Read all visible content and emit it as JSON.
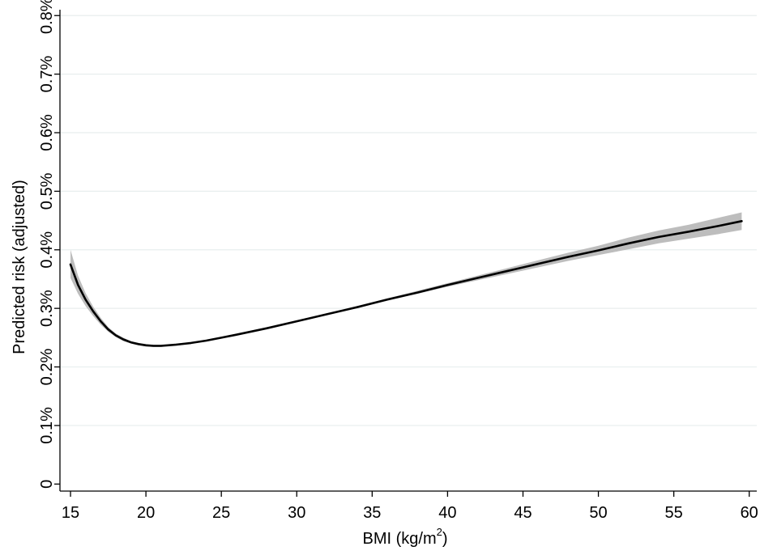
{
  "chart_data": {
    "type": "line",
    "title": "",
    "xlabel": "BMI (kg/m",
    "xlabel_superscript": "2",
    "xlabel_suffix": ")",
    "ylabel": "Predicted risk (adjusted)",
    "xlim": [
      14.3,
      60.5
    ],
    "ylim": [
      -0.012,
      0.81
    ],
    "x_ticks": [
      15,
      20,
      25,
      30,
      35,
      40,
      45,
      50,
      55,
      60
    ],
    "x_tick_labels": [
      "15",
      "20",
      "25",
      "30",
      "35",
      "40",
      "45",
      "50",
      "55",
      "60"
    ],
    "y_ticks": [
      0,
      0.1,
      0.2,
      0.3,
      0.4,
      0.5,
      0.6,
      0.7,
      0.8
    ],
    "y_tick_labels": [
      "0",
      "0.1%",
      "0.2%",
      "0.3%",
      "0.4%",
      "0.5%",
      "0.6%",
      "0.7%",
      "0.8%"
    ],
    "grid": true,
    "colors": {
      "line": "#000000",
      "ci_band": "#bdbdbd",
      "grid": "#e8eeee"
    },
    "series": [
      {
        "x": [
          15,
          15.5,
          16,
          16.5,
          17,
          17.5,
          18,
          18.5,
          19,
          19.5,
          20,
          20.5,
          21,
          22,
          23,
          24,
          25,
          26,
          28,
          30,
          32,
          34,
          36,
          38,
          40,
          42,
          44,
          46,
          48,
          50,
          52,
          54,
          56,
          58,
          59.5
        ],
        "y": [
          0.375,
          0.34,
          0.315,
          0.295,
          0.278,
          0.264,
          0.254,
          0.247,
          0.242,
          0.239,
          0.237,
          0.236,
          0.236,
          0.238,
          0.241,
          0.245,
          0.25,
          0.255,
          0.266,
          0.278,
          0.29,
          0.302,
          0.315,
          0.327,
          0.34,
          0.352,
          0.364,
          0.376,
          0.388,
          0.399,
          0.411,
          0.422,
          0.431,
          0.441,
          0.449
        ],
        "ci_lower": [
          0.352,
          0.325,
          0.304,
          0.287,
          0.272,
          0.26,
          0.251,
          0.244,
          0.24,
          0.237,
          0.235,
          0.234,
          0.234,
          0.236,
          0.24,
          0.244,
          0.249,
          0.254,
          0.265,
          0.277,
          0.289,
          0.301,
          0.313,
          0.325,
          0.337,
          0.348,
          0.359,
          0.37,
          0.381,
          0.391,
          0.401,
          0.411,
          0.419,
          0.427,
          0.434
        ],
        "ci_upper": [
          0.4,
          0.356,
          0.326,
          0.303,
          0.284,
          0.268,
          0.257,
          0.25,
          0.244,
          0.241,
          0.239,
          0.238,
          0.238,
          0.24,
          0.242,
          0.246,
          0.251,
          0.256,
          0.267,
          0.279,
          0.291,
          0.303,
          0.317,
          0.33,
          0.343,
          0.356,
          0.369,
          0.382,
          0.395,
          0.407,
          0.421,
          0.433,
          0.443,
          0.455,
          0.464
        ]
      }
    ]
  }
}
